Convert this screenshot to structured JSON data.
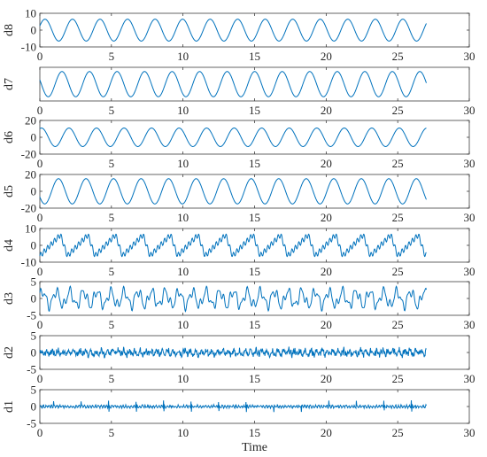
{
  "chart_data": {
    "type": "line",
    "series_color": "#0072BD",
    "axis_color": "#262626",
    "x_range_shown": [
      0,
      27
    ],
    "xlim": [
      0,
      30
    ],
    "xticks": [
      0,
      5,
      10,
      15,
      20,
      25,
      30
    ],
    "xlabel": "Time",
    "grid": false,
    "panels": [
      {
        "ylabel": "d8",
        "ylim": [
          -10,
          10
        ],
        "yticks": [
          -10,
          0,
          10
        ],
        "shape": "sine",
        "amplitude": 6.5,
        "cycles_per_unit": 0.52,
        "phase": 0.4
      },
      {
        "ylabel": "d7",
        "ylim": [
          -20,
          20
        ],
        "yticks": [],
        "shape": "sine",
        "amplitude": 15,
        "cycles_per_unit": 0.52,
        "phase": 2.8
      },
      {
        "ylabel": "d6",
        "ylim": [
          -20,
          20
        ],
        "yticks": [
          -20,
          0,
          20
        ],
        "shape": "sine",
        "amplitude": 11,
        "cycles_per_unit": 0.52,
        "phase": 1.2
      },
      {
        "ylabel": "d5",
        "ylim": [
          -20,
          20
        ],
        "yticks": [
          -20,
          0,
          20
        ],
        "shape": "sine",
        "amplitude": 15,
        "cycles_per_unit": 0.52,
        "phase": 3.6
      },
      {
        "ylabel": "d4",
        "ylim": [
          -10,
          10
        ],
        "yticks": [
          -10,
          0,
          10
        ],
        "shape": "sawtooth",
        "amplitude": 7,
        "cycles_per_unit": 0.52,
        "phase": 0.0
      },
      {
        "ylabel": "d3",
        "ylim": [
          -5,
          5
        ],
        "yticks": [
          -5,
          0,
          5
        ],
        "shape": "multi",
        "amplitude": 3.5,
        "cycles_per_unit": 1.05,
        "phase": 0.3
      },
      {
        "ylabel": "d2",
        "ylim": [
          -5,
          5
        ],
        "yticks": [
          -5,
          0,
          5
        ],
        "shape": "noisy",
        "amplitude": 1.2,
        "cycles_per_unit": 2.6,
        "phase": 0.0
      },
      {
        "ylabel": "d1",
        "ylim": [
          -5,
          5
        ],
        "yticks": [
          -5,
          0,
          5
        ],
        "shape": "spiky",
        "amplitude": 0.3,
        "cycles_per_unit": 5.2,
        "phase": 0.0
      }
    ]
  }
}
